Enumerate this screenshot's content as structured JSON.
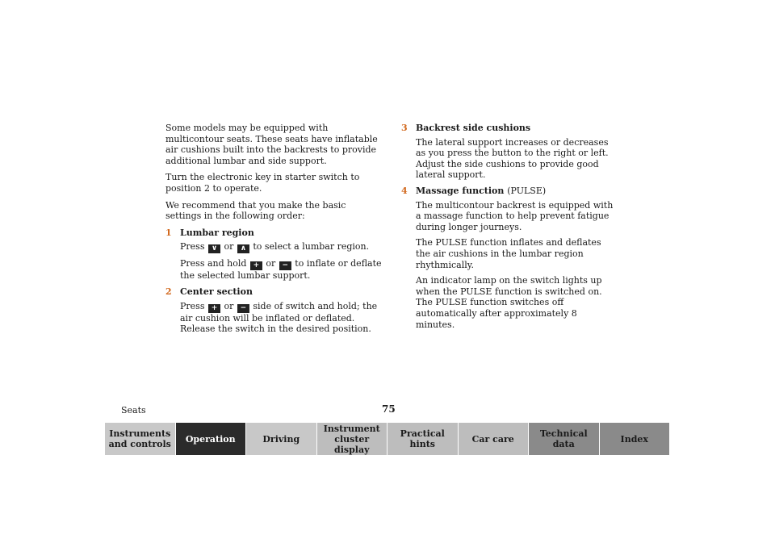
{
  "intro": [
    "Some models may be equipped with multicontour seats. These seats have inflatable air cushions built into the backrests to provide additional lumbar and side support.",
    "Turn the electronic key in starter switch to position 2 to operate.",
    "We recommend that you make the basic settings in the following order:"
  ],
  "items": [
    {
      "num": "1",
      "title": "Lumbar region",
      "p1_pre": "Press",
      "p1_key1": "∨",
      "p1_mid": "or",
      "p1_key2": "∧",
      "p1_post": "to select a lumbar region.",
      "p2_pre": "Press and hold",
      "p2_key1": "+",
      "p2_mid": "or",
      "p2_key2": "−",
      "p2_post": "to inflate or deflate the selected lumbar support."
    },
    {
      "num": "2",
      "title": "Center section",
      "p1_pre": "Press",
      "p1_key1": "+",
      "p1_mid": "or",
      "p1_key2": "−",
      "p1_post": "side of switch and hold; the air cushion will be inflated or deflated. Release the switch in the desired position."
    },
    {
      "num": "3",
      "title": "Backrest side cushions",
      "paras": [
        "The lateral support increases or decreases as you press the button to the right or left. Adjust the side cushions to provide good lateral support."
      ]
    },
    {
      "num": "4",
      "title": "Massage function",
      "title_sub": "(PULSE)",
      "paras": [
        "The multicontour backrest is equipped with a massage function to help prevent fatigue during longer journeys.",
        "The PULSE function inflates and deflates the air cushions in the lumbar region rhythmically.",
        "An indicator lamp on the switch lights up when the PULSE function is switched on. The PULSE function switches off automatically after approximately 8 minutes."
      ]
    }
  ],
  "footer": {
    "section": "Seats",
    "page": "75"
  },
  "nav": [
    {
      "label": "Instruments and controls"
    },
    {
      "label": "Operation"
    },
    {
      "label": "Driving"
    },
    {
      "label": "Instrument cluster display"
    },
    {
      "label": "Practical hints"
    },
    {
      "label": "Car care"
    },
    {
      "label": "Technical data"
    },
    {
      "label": "Index"
    }
  ],
  "colors": {
    "accent_number": "#d2691e",
    "active_tab": "#2b2b2b",
    "tab": "#c8c8c8"
  }
}
